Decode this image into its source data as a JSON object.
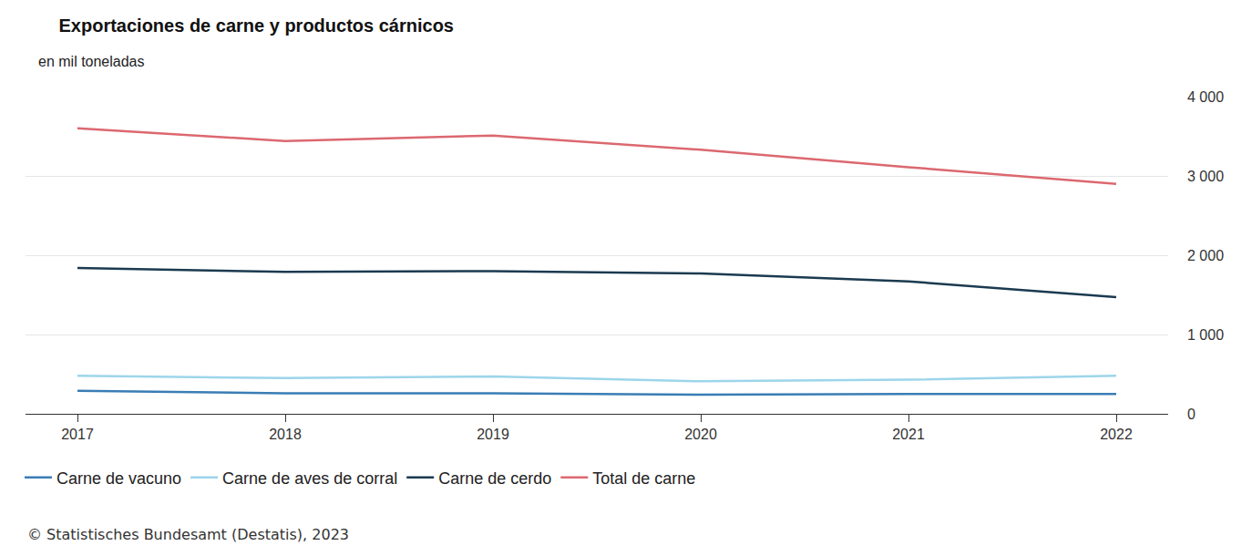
{
  "chart_data": {
    "type": "line",
    "title": "Exportaciones de carne y productos cárnicos",
    "subtitle": "en mil toneladas",
    "source": "© Statistisches Bundesamt (Destatis), 2023",
    "categories": [
      "2017",
      "2018",
      "2019",
      "2020",
      "2021",
      "2022"
    ],
    "series": [
      {
        "name": "Carne de vacuno",
        "color": "#3a7db5",
        "values": [
          290,
          260,
          260,
          240,
          250,
          250
        ]
      },
      {
        "name": "Carne de aves de corral",
        "color": "#9dd5ea",
        "values": [
          480,
          450,
          470,
          410,
          430,
          480
        ]
      },
      {
        "name": "Carne de cerdo",
        "color": "#1b3a50",
        "values": [
          1840,
          1790,
          1800,
          1770,
          1670,
          1470
        ]
      },
      {
        "name": "Total de carne",
        "color": "#dc6870",
        "values": [
          3600,
          3440,
          3510,
          3330,
          3110,
          2900
        ]
      }
    ],
    "ylim": [
      0,
      4000
    ],
    "yticks": [
      0,
      {
        "value": 1000,
        "label": "1 000"
      },
      {
        "value": 2000,
        "label": "2 000"
      },
      {
        "value": 3000,
        "label": "3 000"
      },
      {
        "value": 4000,
        "label": "4 000"
      }
    ],
    "grid": true,
    "legend": "bottom"
  }
}
